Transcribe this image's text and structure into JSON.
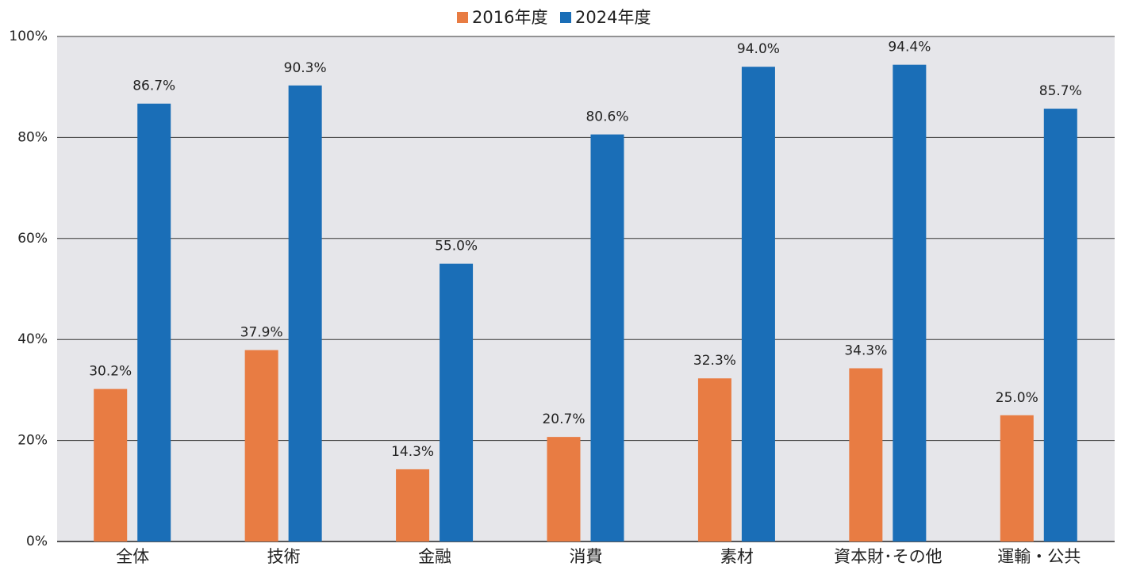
{
  "chart_data": {
    "type": "bar",
    "categories": [
      "全体",
      "技術",
      "金融",
      "消費",
      "素材",
      "資本財･その他",
      "運輸・公共"
    ],
    "series": [
      {
        "name": "2016年度",
        "color": "#e87c43",
        "values": [
          30.2,
          37.9,
          14.3,
          20.7,
          32.3,
          34.3,
          25.0
        ],
        "value_labels": [
          "30.2%",
          "37.9%",
          "14.3%",
          "20.7%",
          "32.3%",
          "34.3%",
          "25.0%"
        ]
      },
      {
        "name": "2024年度",
        "color": "#1a6eb7",
        "values": [
          86.7,
          90.3,
          55.0,
          80.6,
          94.0,
          94.4,
          85.7
        ],
        "value_labels": [
          "86.7%",
          "90.3%",
          "55.0%",
          "80.6%",
          "94.0%",
          "94.4%",
          "85.7%"
        ]
      }
    ],
    "ylim": [
      0,
      100
    ],
    "yticks": [
      {
        "value": 0,
        "label": "0%"
      },
      {
        "value": 20,
        "label": "20%"
      },
      {
        "value": 40,
        "label": "40%"
      },
      {
        "value": 60,
        "label": "60%"
      },
      {
        "value": 80,
        "label": "80%"
      },
      {
        "value": 100,
        "label": "100%"
      }
    ],
    "grid": true,
    "legend": "top"
  }
}
